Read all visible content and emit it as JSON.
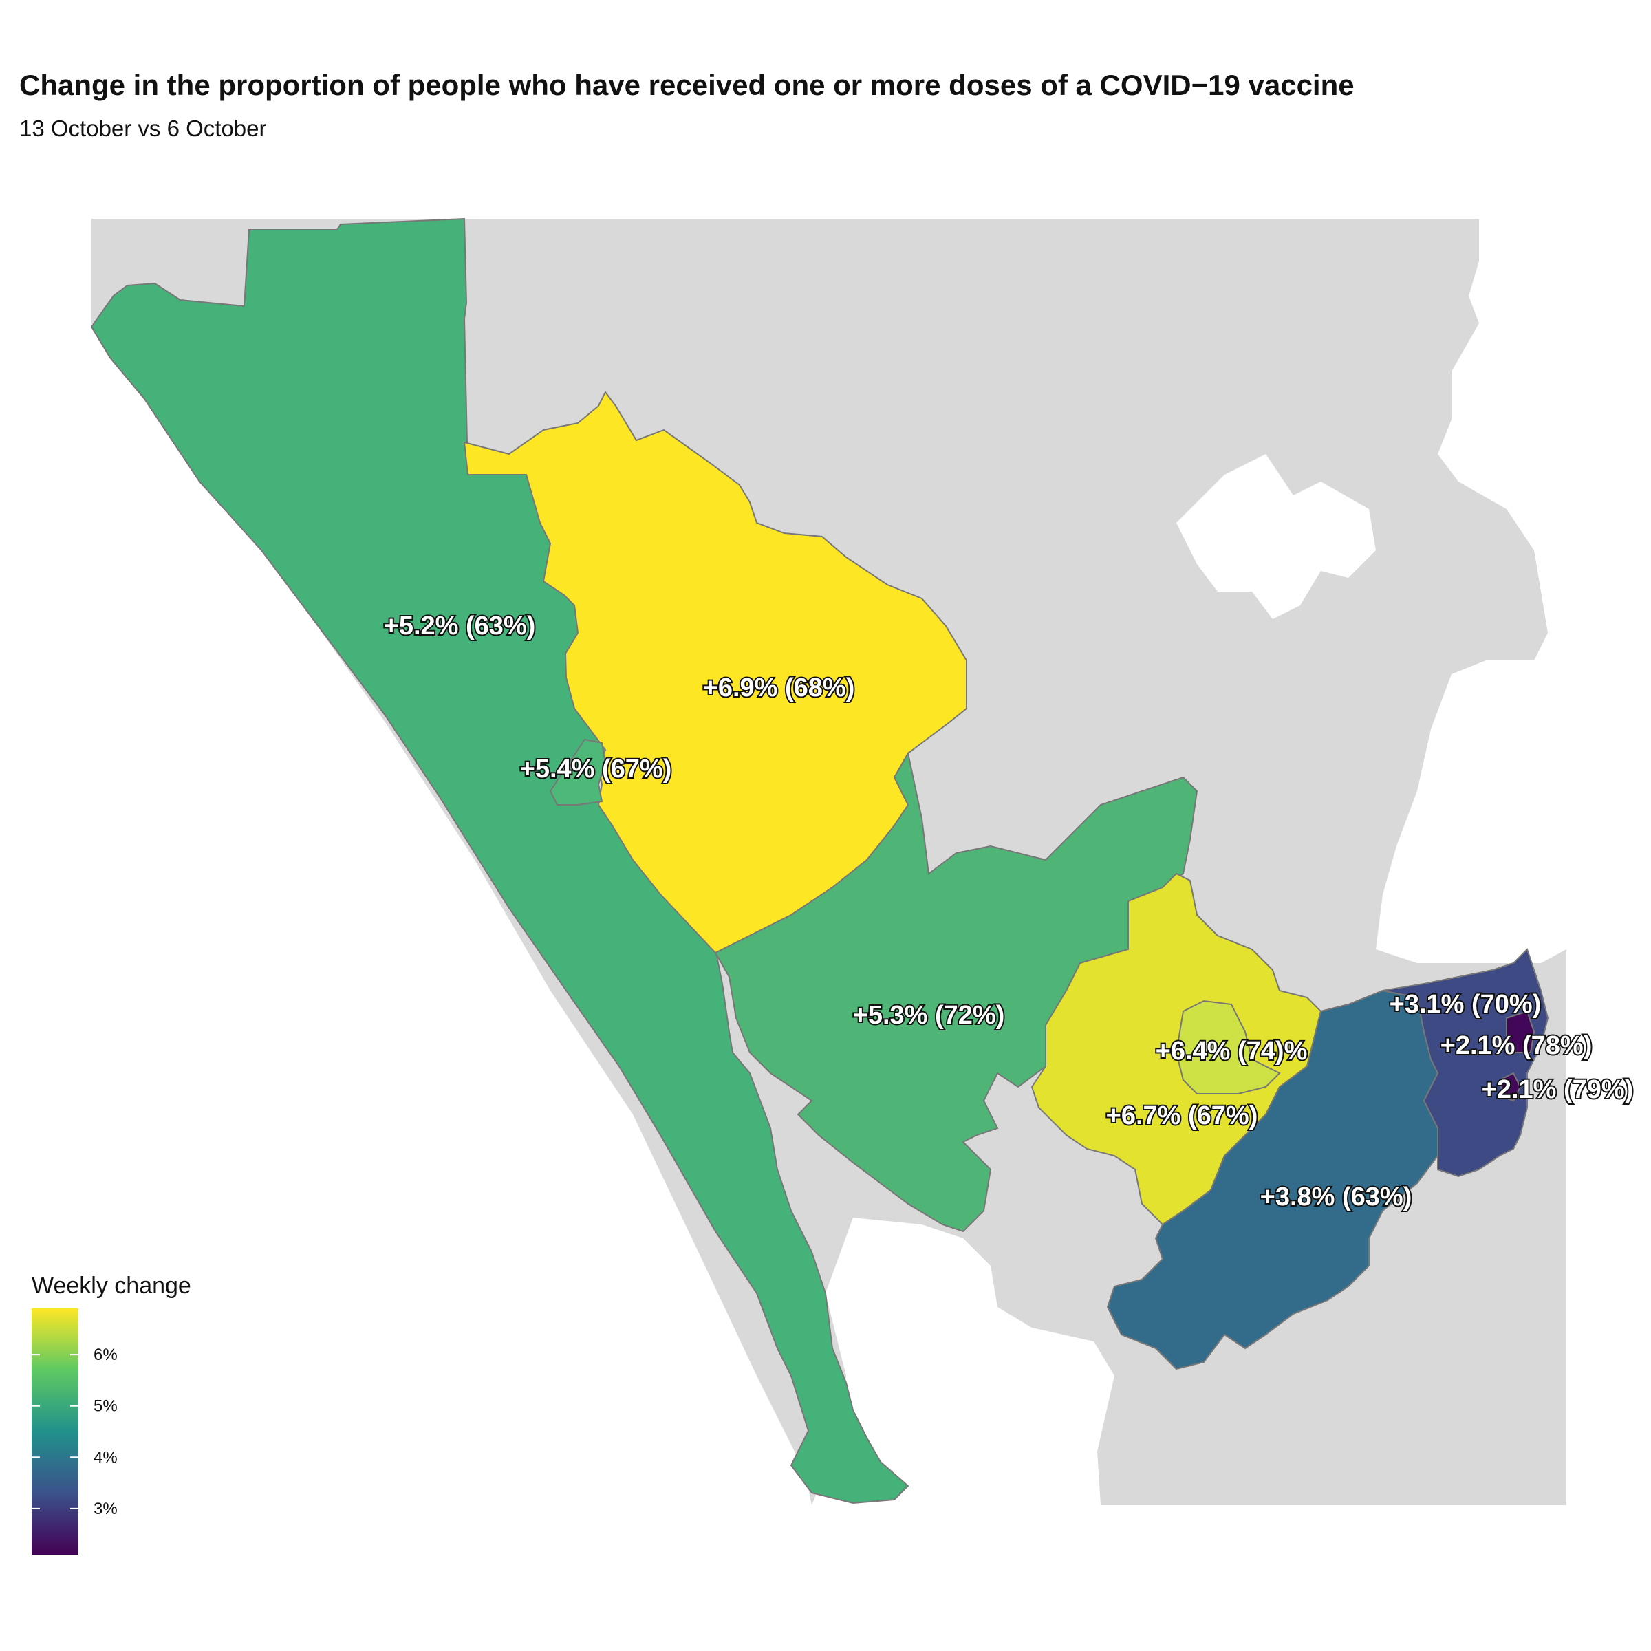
{
  "title": "Change in the proportion of people who have received one or more doses of a COVID−19 vaccine",
  "subtitle": "13 October vs 6 October",
  "legend": {
    "title": "Weekly change",
    "min": 2.1,
    "max": 6.9,
    "ticks": [
      {
        "value": 3,
        "label": "3%"
      },
      {
        "value": 4,
        "label": "4%"
      },
      {
        "value": 5,
        "label": "5%"
      },
      {
        "value": 6,
        "label": "6%"
      }
    ],
    "palette": [
      "#440154",
      "#3b528b",
      "#21918c",
      "#5ec962",
      "#fde725"
    ]
  },
  "colors": {
    "land_background": "#d9d9d9",
    "water": "#ffffff",
    "region_border": "#777777"
  },
  "regions": [
    {
      "id": "far-west",
      "label": "+5.2% (63%)",
      "change": 5.2,
      "coverage": 63,
      "color": "#45b27a"
    },
    {
      "id": "north-central",
      "label": "+6.9% (68%)",
      "change": 6.9,
      "coverage": 68,
      "color": "#fde725"
    },
    {
      "id": "small-central",
      "label": "+5.4% (67%)",
      "change": 5.4,
      "coverage": 67,
      "color": "#4db878"
    },
    {
      "id": "central",
      "label": "+5.3% (72%)",
      "change": 5.3,
      "coverage": 72,
      "color": "#4fb577"
    },
    {
      "id": "inner-town",
      "label": "+6.4% (74)%",
      "change": 6.4,
      "coverage": 74,
      "color": "#cee245"
    },
    {
      "id": "town-west",
      "label": "+6.7% (67%)",
      "change": 6.7,
      "coverage": 67,
      "color": "#e3e32f"
    },
    {
      "id": "southeast",
      "label": "+3.8% (63%)",
      "change": 3.8,
      "coverage": 63,
      "color": "#336c8b"
    },
    {
      "id": "east",
      "label": "+3.1% (70%)",
      "change": 3.1,
      "coverage": 70,
      "color": "#3d4a84"
    },
    {
      "id": "east-north",
      "label": "+2.1% (78%)",
      "change": 2.1,
      "coverage": 78,
      "color": "#43075a"
    },
    {
      "id": "east-south",
      "label": "+2.1% (79%)",
      "change": 2.1,
      "coverage": 79,
      "color": "#430a5a"
    }
  ]
}
